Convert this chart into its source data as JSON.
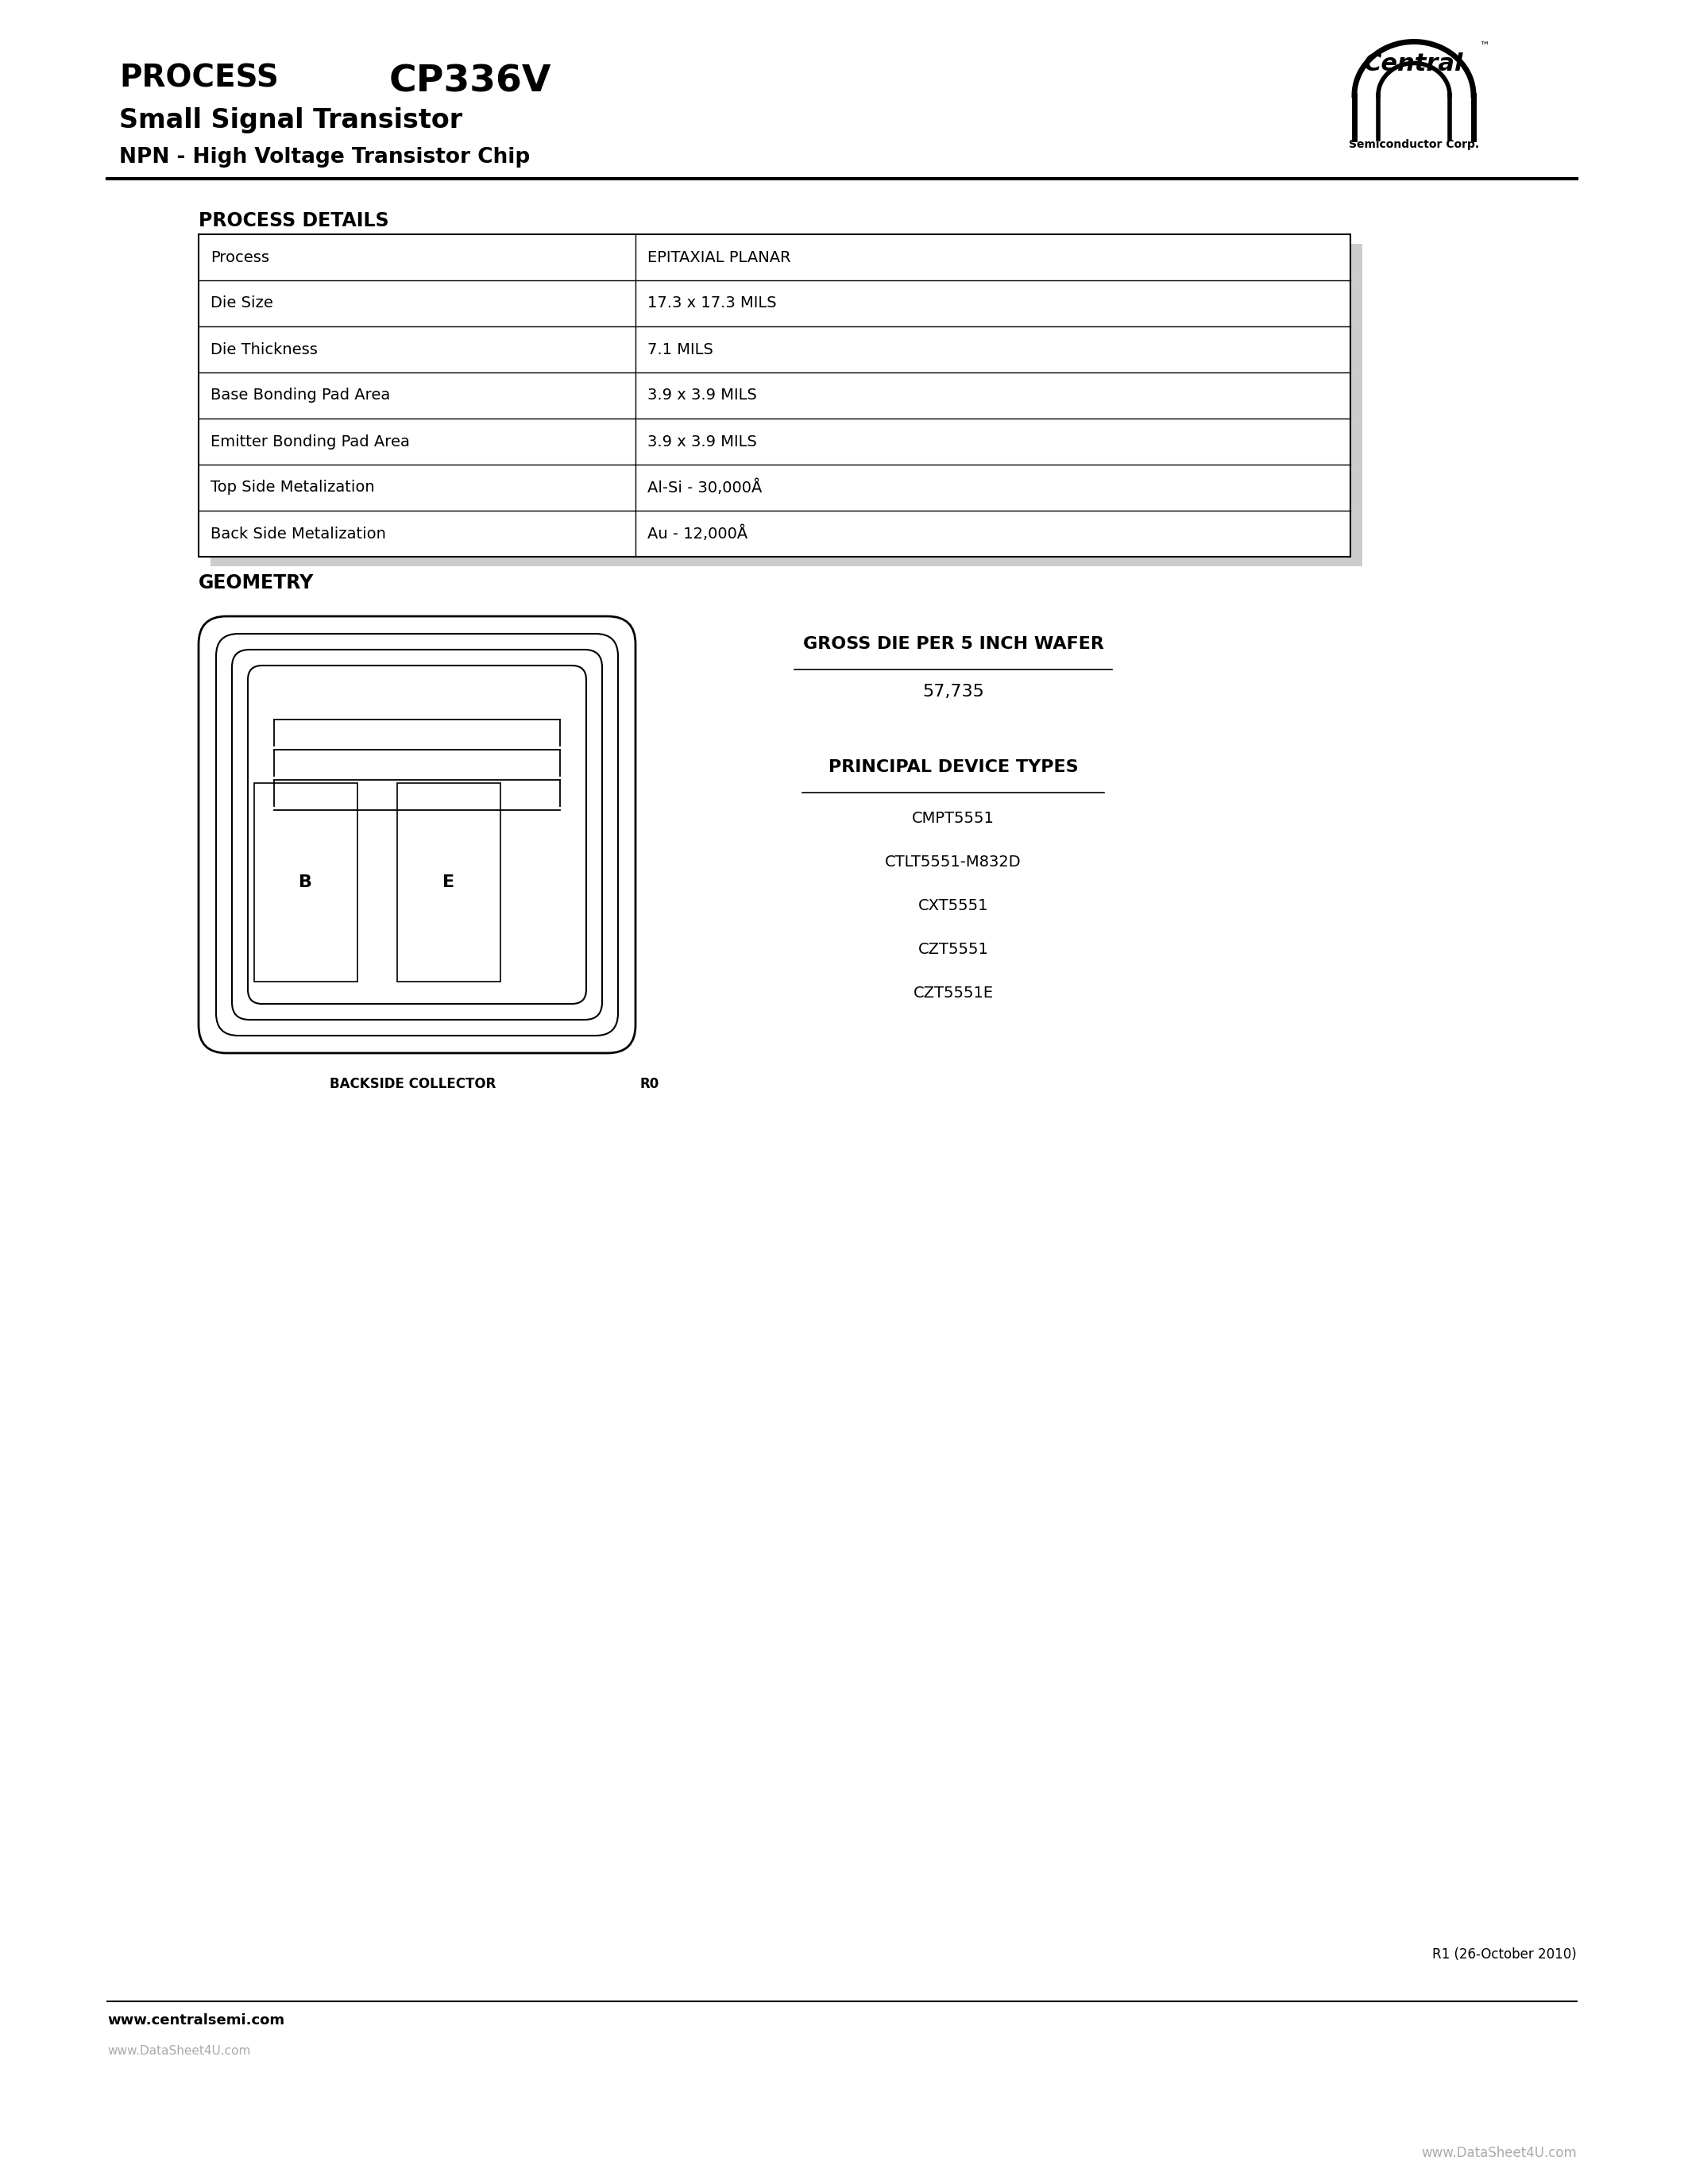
{
  "bg_color": "#ffffff",
  "header": {
    "process_text": "PROCESS",
    "model_text": "CP336V",
    "subtitle1": "Small Signal Transistor",
    "subtitle2": "NPN - High Voltage Transistor Chip",
    "logo_text1": "Central",
    "logo_text2": "Semiconductor Corp."
  },
  "table_title": "PROCESS DETAILS",
  "table_rows": [
    [
      "Process",
      "EPITAXIAL PLANAR"
    ],
    [
      "Die Size",
      "17.3 x 17.3 MILS"
    ],
    [
      "Die Thickness",
      "7.1 MILS"
    ],
    [
      "Base Bonding Pad Area",
      "3.9 x 3.9 MILS"
    ],
    [
      "Emitter Bonding Pad Area",
      "3.9 x 3.9 MILS"
    ],
    [
      "Top Side Metalization",
      "Al-Si - 30,000Å"
    ],
    [
      "Back Side Metalization",
      "Au - 12,000Å"
    ]
  ],
  "geometry_title": "GEOMETRY",
  "gross_die_title": "GROSS DIE PER 5 INCH WAFER",
  "gross_die_value": "57,735",
  "principal_title": "PRINCIPAL DEVICE TYPES",
  "device_types": [
    "CMPT5551",
    "CTLT5551-M832D",
    "CXT5551",
    "CZT5551",
    "CZT5551E"
  ],
  "backside_label": "BACKSIDE COLLECTOR",
  "r0_label": "R0",
  "footer_revision": "R1 (26-October 2010)",
  "footer_url": "www.centralsemi.com",
  "watermark1": "www.DataSheet4U.com",
  "watermark2": "www.DataSheet4U.com"
}
